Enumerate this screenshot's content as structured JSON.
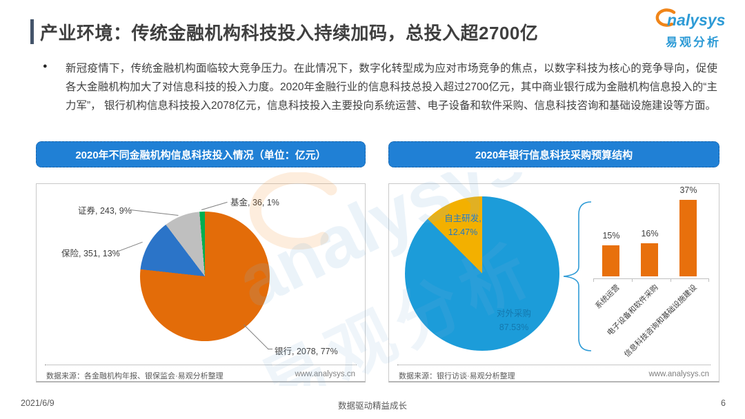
{
  "header": {
    "title": "产业环境：传统金融机构科技投入持续加码，总投入超2700亿",
    "accent_color": "#44546A",
    "logo_text": "nalysys",
    "logo_cn": "易观分析",
    "brand_blue": "#2E9BD6",
    "brand_orange": "#F08519"
  },
  "intro": {
    "bullet_text": "新冠疫情下，传统金融机构面临较大竞争压力。在此情况下，数字化转型成为应对市场竞争的焦点，以数字科技为核心的竞争导向，促使各大金融机构加大了对信息科技的投入力度。2020年金融行业的信息科技总投入超过2700亿元，其中商业银行成为金融机构信息投入的“主力军”， 银行机构信息科技投入2078亿元，信息科技投入主要投向系统运营、电子设备和软件采购、信息科技咨询和基础设施建设等方面。"
  },
  "left_panel": {
    "header": "2020年不同金融机构信息科技投入情况（单位：亿元）",
    "pie_labels": {
      "fund": "基金, 36, 1%",
      "securities": "证券, 243, 9%",
      "insurance": "保险, 351, 13%",
      "bank": "银行, 2078, 77%"
    },
    "source": "数据来源：各金融机构年报、银保监会·易观分析整理",
    "website": "www.analysys.cn"
  },
  "right_panel": {
    "header": "2020年银行信息科技采购预算结构",
    "pie_labels": {
      "self_dev_name": "自主研发,",
      "self_dev_value": "12.47%",
      "external_name": "对外采购",
      "external_value": "87.53%"
    },
    "bars": [
      {
        "value_label": "15%",
        "category": "系统运营"
      },
      {
        "value_label": "16%",
        "category": "电子设备和软件采购"
      },
      {
        "value_label": "37%",
        "category": "信息科技咨询和基础设施建设"
      }
    ],
    "source": "数据来源：银行访谈·易观分析整理",
    "website": "www.analysys.cn"
  },
  "footer": {
    "date": "2021/6/9",
    "slogan": "数据驱动精益成长",
    "page_number": "6"
  },
  "watermark": {
    "brand": "analysys",
    "brand_cn": "易观分析"
  },
  "chart_data": [
    {
      "type": "pie",
      "title": "2020年不同金融机构信息科技投入情况（单位：亿元）",
      "unit": "亿元",
      "labels": [
        "银行",
        "保险",
        "证券",
        "基金"
      ],
      "values": [
        2078,
        351,
        243,
        36
      ],
      "percents": [
        "77%",
        "13%",
        "9%",
        "1%"
      ],
      "colors": [
        "#E36C09",
        "#2B74C8",
        "#BFBFBF",
        "#00AE50"
      ],
      "start_angle_deg": 0,
      "direction": "clockwise"
    },
    {
      "type": "pie",
      "title": "2020年银行信息科技采购预算结构",
      "labels": [
        "对外采购",
        "自主研发"
      ],
      "values": [
        87.53,
        12.47
      ],
      "percents": [
        "87.53%",
        "12.47%"
      ],
      "colors": [
        "#1C9CD9",
        "#F3B000"
      ],
      "start_angle_deg": 0,
      "direction": "clockwise"
    },
    {
      "type": "bar",
      "title": "2020年银行信息科技采购预算结构（采购构成）",
      "categories": [
        "系统运营",
        "电子设备和软件采购",
        "信息科技咨询和基础设施建设"
      ],
      "values": [
        15,
        16,
        37
      ],
      "value_labels": [
        "15%",
        "16%",
        "37%"
      ],
      "color": "#E8700C",
      "ylim": [
        0,
        40
      ],
      "grid": false
    }
  ]
}
